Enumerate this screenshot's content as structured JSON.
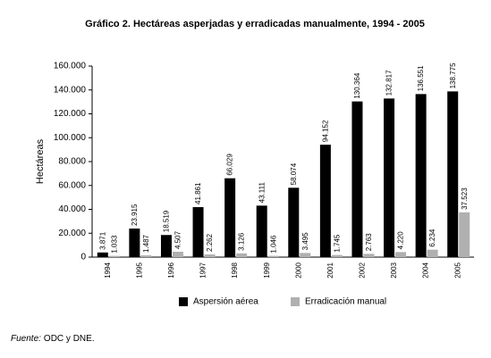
{
  "chart_data": {
    "type": "bar",
    "title": "Gráfico 2. Hectáreas asperjadas y erradicadas manualmente, 1994 - 2005",
    "y_label": "Hectáreas",
    "categories": [
      "1994",
      "1995",
      "1996",
      "1997",
      "1998",
      "1999",
      "2000",
      "2001",
      "2002",
      "2003",
      "2004",
      "2005"
    ],
    "series": [
      {
        "name": "Aspersión aérea",
        "color": "#000000",
        "values": [
          3871,
          23915,
          18519,
          41861,
          66029,
          43111,
          58074,
          94152,
          130364,
          132817,
          136551,
          138775
        ],
        "value_labels": [
          "3.871",
          "23.915",
          "18.519",
          "41.861",
          "66.029",
          "43.111",
          "58.074",
          "94.152",
          "130.364",
          "132.817",
          "136.551",
          "138.775"
        ]
      },
      {
        "name": "Erradicación manual",
        "color": "#b0b0b0",
        "values": [
          1033,
          1487,
          4507,
          2262,
          3126,
          1046,
          3495,
          1745,
          2763,
          4220,
          6234,
          37523
        ],
        "value_labels": [
          "1.033",
          "1.487",
          "4.507",
          "2.262",
          "3.126",
          "1.046",
          "3.495",
          "1.745",
          "2.763",
          "4.220",
          "6.234",
          "37.523"
        ]
      }
    ],
    "ylim": [
      0,
      160000
    ],
    "yticks": [
      {
        "value": 0,
        "label": "0"
      },
      {
        "value": 20000,
        "label": "20.000"
      },
      {
        "value": 40000,
        "label": "40.000"
      },
      {
        "value": 60000,
        "label": "60.000"
      },
      {
        "value": 80000,
        "label": "80.000"
      },
      {
        "value": 100000,
        "label": "100.000"
      },
      {
        "value": 120000,
        "label": "120.000"
      },
      {
        "value": 140000,
        "label": "140.000"
      },
      {
        "value": 160000,
        "label": "160.000"
      }
    ],
    "legend_position": "bottom",
    "source_label": "Fuente:",
    "source": "ODC y DNE."
  }
}
